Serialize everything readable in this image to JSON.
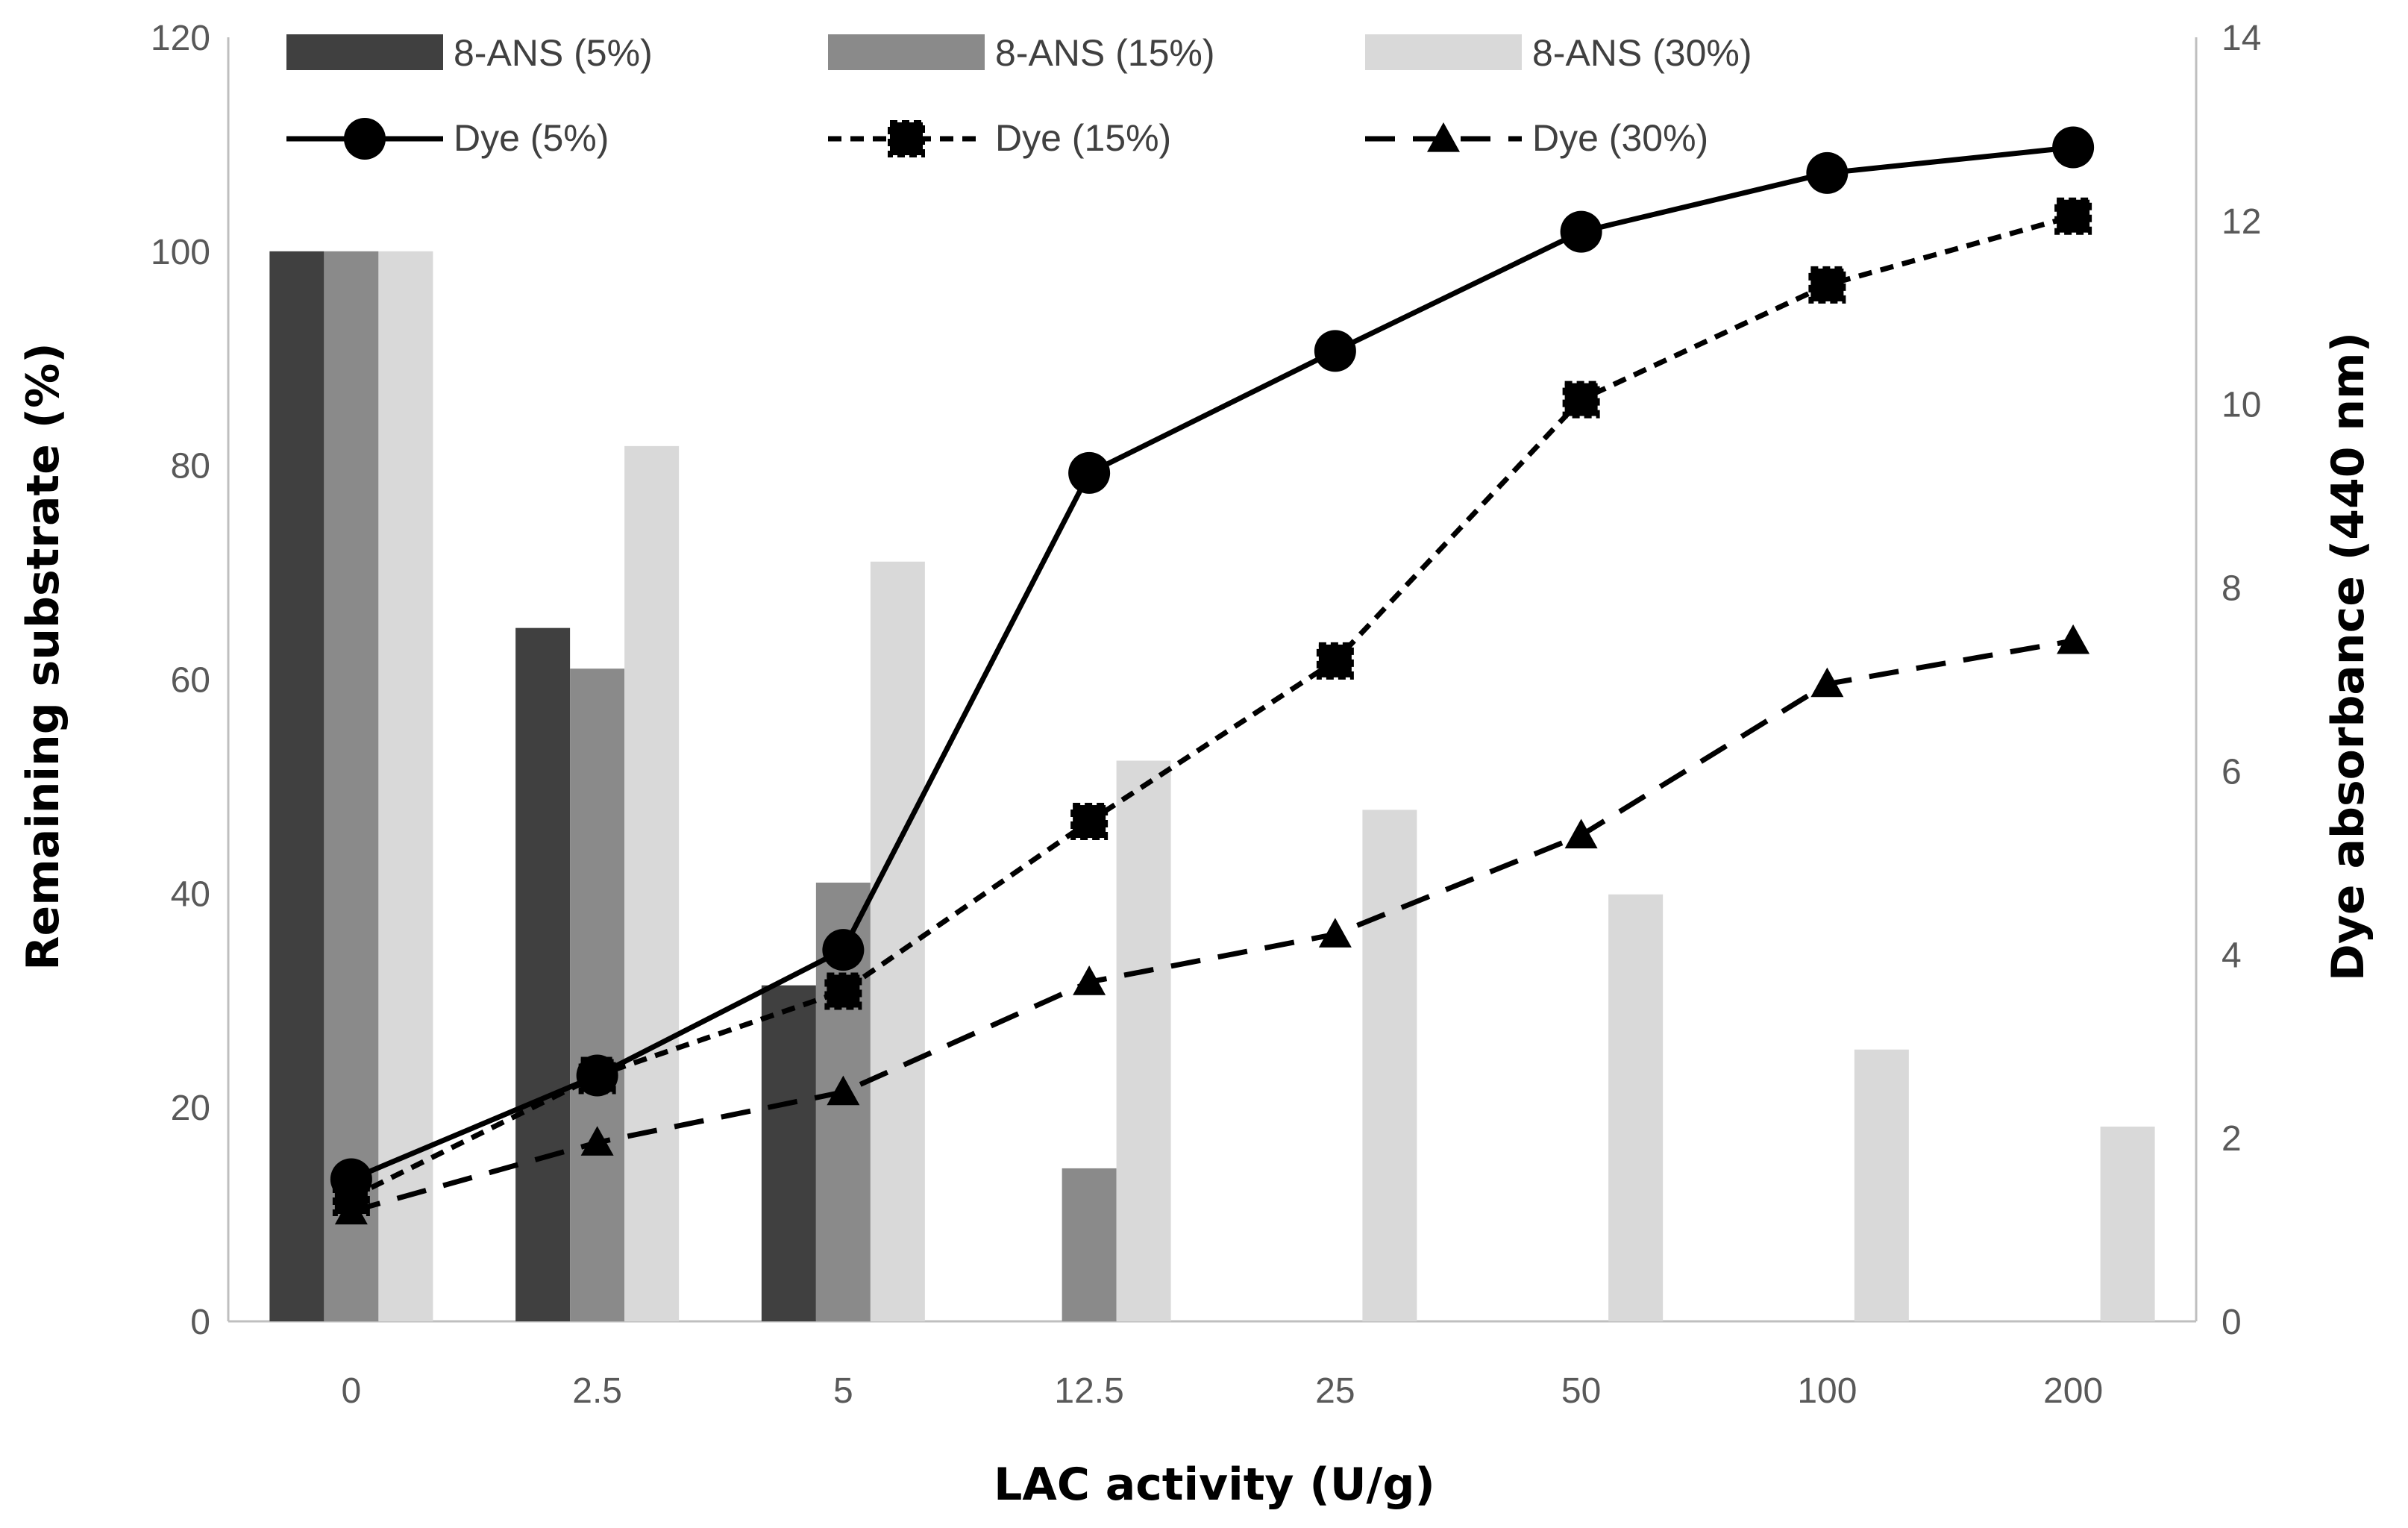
{
  "chart_data": {
    "type": "bar+line",
    "categories": [
      "0",
      "2.5",
      "5",
      "12.5",
      "25",
      "50",
      "100",
      "200"
    ],
    "xlabel": "LAC activity (U/g)",
    "ylabel": "Remaining substrate  (%)",
    "y2label": "Dye absorbance (440 nm)",
    "ylim": [
      0,
      120
    ],
    "yticks": [
      "0",
      "20",
      "40",
      "60",
      "80",
      "100",
      "120"
    ],
    "y2lim": [
      0,
      14
    ],
    "y2ticks": [
      "0",
      "2",
      "4",
      "6",
      "8",
      "10",
      "12",
      "14"
    ],
    "grid": false,
    "legend_position": "top",
    "bar_series": [
      {
        "name": "8-ANS (5%)",
        "color": "#404040",
        "values": [
          100,
          64.8,
          31.4,
          0,
          0,
          0,
          0,
          0
        ]
      },
      {
        "name": "8-ANS (15%)",
        "color": "#8a8a8a",
        "values": [
          100,
          61,
          41,
          14.3,
          0,
          0,
          0,
          0
        ]
      },
      {
        "name": "8-ANS (30%)",
        "color": "#d9d9d9",
        "values": [
          100,
          81.8,
          71,
          52.4,
          47.8,
          39.9,
          25.4,
          18.2
        ]
      }
    ],
    "line_series": [
      {
        "name": "Dye (5%)",
        "color": "#000000",
        "dash": "solid",
        "marker": "circle",
        "values": [
          1.55,
          2.68,
          4.05,
          9.25,
          10.58,
          11.88,
          12.52,
          12.8
        ]
      },
      {
        "name": "Dye (15%)",
        "color": "#000000",
        "dash": "dotted",
        "marker": "square",
        "values": [
          1.35,
          2.68,
          3.6,
          5.45,
          7.2,
          10.05,
          11.3,
          12.05
        ]
      },
      {
        "name": "Dye (30%)",
        "color": "#000000",
        "dash": "dashed",
        "marker": "triangle",
        "values": [
          1.2,
          1.95,
          2.5,
          3.7,
          4.22,
          5.3,
          6.95,
          7.42
        ]
      }
    ]
  }
}
